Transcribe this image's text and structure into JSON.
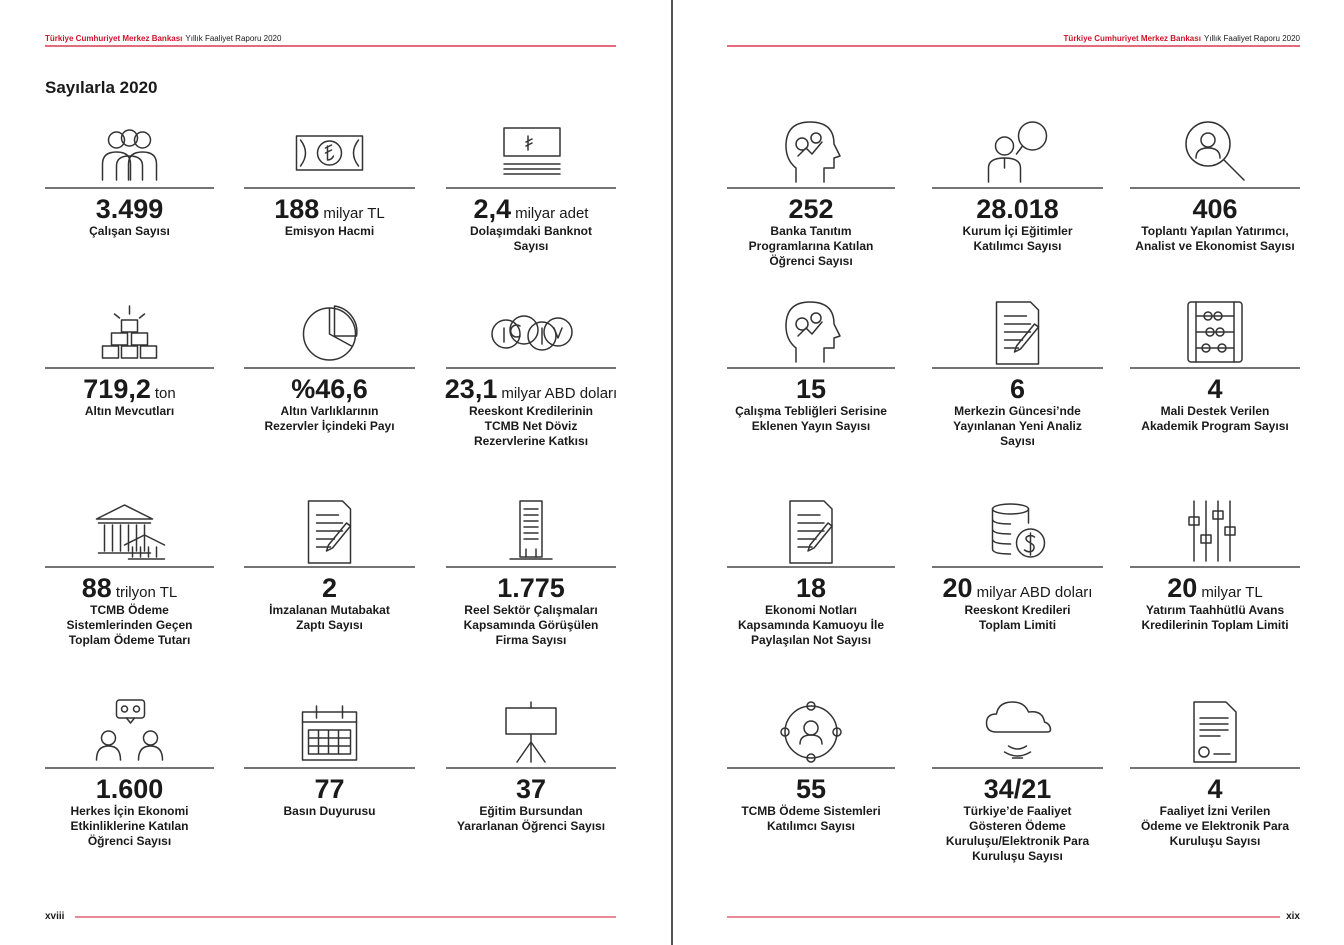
{
  "header": {
    "left": {
      "org": "Türkiye Cumhuriyet Merkez Bankası",
      "report": "Yıllık Faaliyet Raporu 2020"
    },
    "right": {
      "org": "Türkiye Cumhuriyet Merkez Bankası",
      "report": "Yıllık Faaliyet Raporu 2020"
    }
  },
  "title": "Sayılarla 2020",
  "left_page": {
    "page_number": "xviii",
    "items": [
      {
        "value": "3.499",
        "label": [
          "Çalışan Sayısı"
        ]
      },
      {
        "value": "188",
        "unit": "milyar TL",
        "label": [
          "Emisyon Hacmi"
        ]
      },
      {
        "value": "2,4",
        "unit": "milyar adet",
        "label": [
          "Dolaşımdaki Banknot",
          "Sayısı"
        ]
      },
      {
        "value": "719,2",
        "unit": "ton",
        "label": [
          "Altın Mevcutları"
        ]
      },
      {
        "value": "%46,6",
        "label": [
          "Altın Varlıklarının",
          "Rezervler İçindeki Payı"
        ]
      },
      {
        "value": "23,1",
        "unit": "milyar ABD doları",
        "label": [
          "Reeskont Kredilerinin",
          "TCMB Net Döviz",
          "Rezervlerine Katkısı"
        ]
      },
      {
        "value": "88",
        "unit": "trilyon TL",
        "label": [
          "TCMB Ödeme",
          "Sistemlerinden Geçen",
          "Toplam Ödeme Tutarı"
        ]
      },
      {
        "value": "2",
        "label": [
          "İmzalanan Mutabakat",
          "Zaptı Sayısı"
        ]
      },
      {
        "value": "1.775",
        "label": [
          "Reel Sektör Çalışmaları",
          "Kapsamında Görüşülen",
          "Firma Sayısı"
        ]
      },
      {
        "value": "1.600",
        "label": [
          "Herkes İçin Ekonomi",
          "Etkinliklerine Katılan",
          "Öğrenci Sayısı"
        ]
      },
      {
        "value": "77",
        "label": [
          "Basın Duyurusu"
        ]
      },
      {
        "value": "37",
        "label": [
          "Eğitim Bursundan",
          "Yararlanan Öğrenci Sayısı"
        ]
      }
    ]
  },
  "right_page": {
    "page_number": "xix",
    "items": [
      {
        "value": "252",
        "label": [
          "Banka Tanıtım",
          "Programlarına Katılan",
          "Öğrenci Sayısı"
        ]
      },
      {
        "value": "28.018",
        "label": [
          "Kurum İçi Eğitimler",
          "Katılımcı Sayısı"
        ]
      },
      {
        "value": "406",
        "label": [
          "Toplantı Yapılan Yatırımcı,",
          "Analist ve Ekonomist Sayısı"
        ]
      },
      {
        "value": "15",
        "label": [
          "Çalışma Tebliğleri Serisine",
          "Eklenen Yayın Sayısı"
        ]
      },
      {
        "value": "6",
        "label": [
          "Merkezin Güncesi’nde",
          "Yayınlanan Yeni Analiz",
          "Sayısı"
        ]
      },
      {
        "value": "4",
        "label": [
          "Mali Destek Verilen",
          "Akademik Program Sayısı"
        ]
      },
      {
        "value": "18",
        "label": [
          "Ekonomi Notları",
          "Kapsamında Kamuoyu İle",
          "Paylaşılan Not Sayısı"
        ]
      },
      {
        "value": "20",
        "unit": "milyar ABD doları",
        "label": [
          "Reeskont Kredileri",
          "Toplam Limiti"
        ]
      },
      {
        "value": "20",
        "unit": "milyar TL",
        "label": [
          "Yatırım Taahhütlü Avans",
          "Kredilerinin Toplam Limiti"
        ]
      },
      {
        "value": "55",
        "label": [
          "TCMB Ödeme Sistemleri",
          "Katılımcı Sayısı"
        ]
      },
      {
        "value": "34/21",
        "label": [
          "Türkiye’de Faaliyet",
          "Gösteren Ödeme",
          "Kuruluşu/Elektronik Para",
          "Kuruluşu Sayısı"
        ]
      },
      {
        "value": "4",
        "label": [
          "Faaliyet İzni Verilen",
          "Ödeme ve Elektronik Para",
          "Kuruluşu Sayısı"
        ]
      }
    ]
  }
}
